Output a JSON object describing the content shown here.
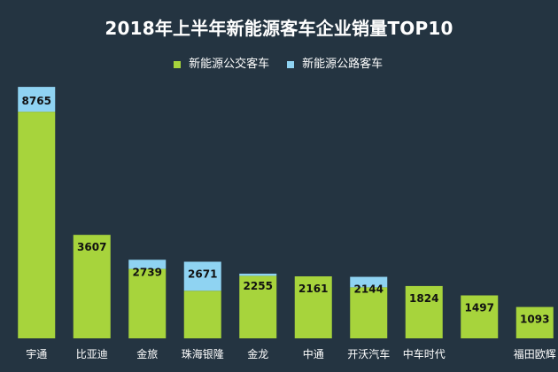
{
  "colors": {
    "background": "#243441",
    "bus": "#a7d43c",
    "road": "#8fd3f2",
    "text": "#ffffff",
    "value_label": "#111111"
  },
  "chart_data": {
    "type": "bar",
    "stacked": true,
    "title": "2018年上半年新能源客车企业销量TOP10",
    "legend_position": "top",
    "grid": false,
    "ylim": [
      0,
      9200
    ],
    "categories": [
      "宇通",
      "比亚迪",
      "金旅",
      "珠海银隆",
      "金龙",
      "中通",
      "开沃汽车",
      "中车时代",
      "",
      "福田欧辉"
    ],
    "series": [
      {
        "name": "新能源公交客车",
        "color": "#a7d43c",
        "values": [
          7900,
          3607,
          2420,
          1660,
          2180,
          2161,
          1780,
          1824,
          1497,
          1093
        ]
      },
      {
        "name": "新能源公路客车",
        "color": "#8fd3f2",
        "values": [
          865,
          0,
          319,
          1011,
          75,
          0,
          364,
          0,
          0,
          0
        ]
      }
    ],
    "totals": [
      "8765",
      "3607",
      "2739",
      "2671",
      "2255",
      "2161",
      "2144",
      "1824",
      "1497",
      "1093"
    ]
  }
}
